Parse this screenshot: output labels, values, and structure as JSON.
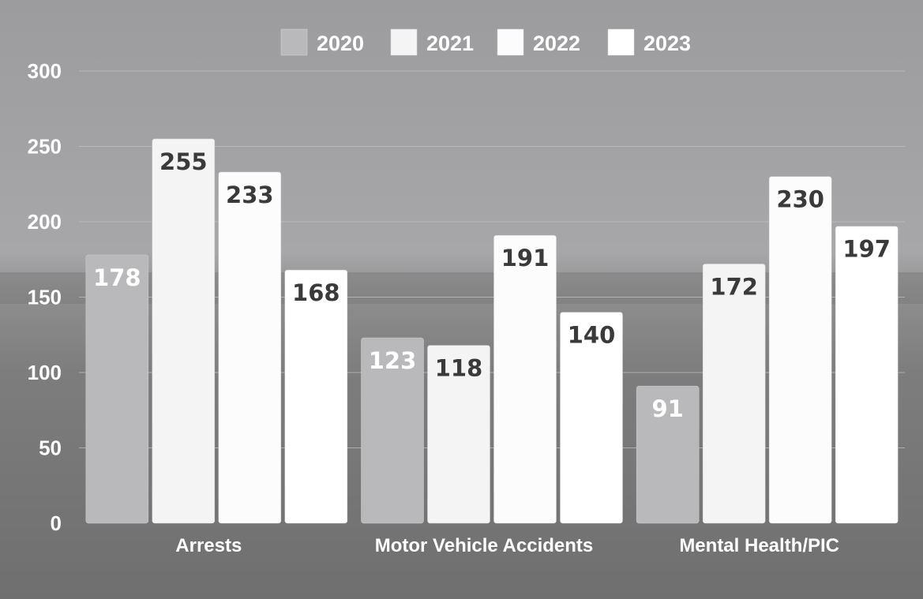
{
  "chart_data": {
    "type": "bar",
    "categories": [
      "Arrests",
      "Motor Vehicle Accidents",
      "Mental Health/PIC"
    ],
    "series": [
      {
        "name": "2020",
        "values": [
          178,
          123,
          91
        ],
        "color": "#b9b9bb"
      },
      {
        "name": "2021",
        "values": [
          255,
          118,
          172
        ],
        "color": "#f4f4f4"
      },
      {
        "name": "2022",
        "values": [
          233,
          191,
          230
        ],
        "color": "#fcfcfc"
      },
      {
        "name": "2023",
        "values": [
          168,
          140,
          197
        ],
        "color": "#ffffff"
      }
    ],
    "yticks": [
      0,
      50,
      100,
      150,
      200,
      250,
      300
    ],
    "ylim": [
      0,
      300
    ],
    "legend_position": "top-center",
    "grid": true,
    "value_label_colors": {
      "2020": "#ffffff",
      "other": "#3a3a3a"
    }
  }
}
